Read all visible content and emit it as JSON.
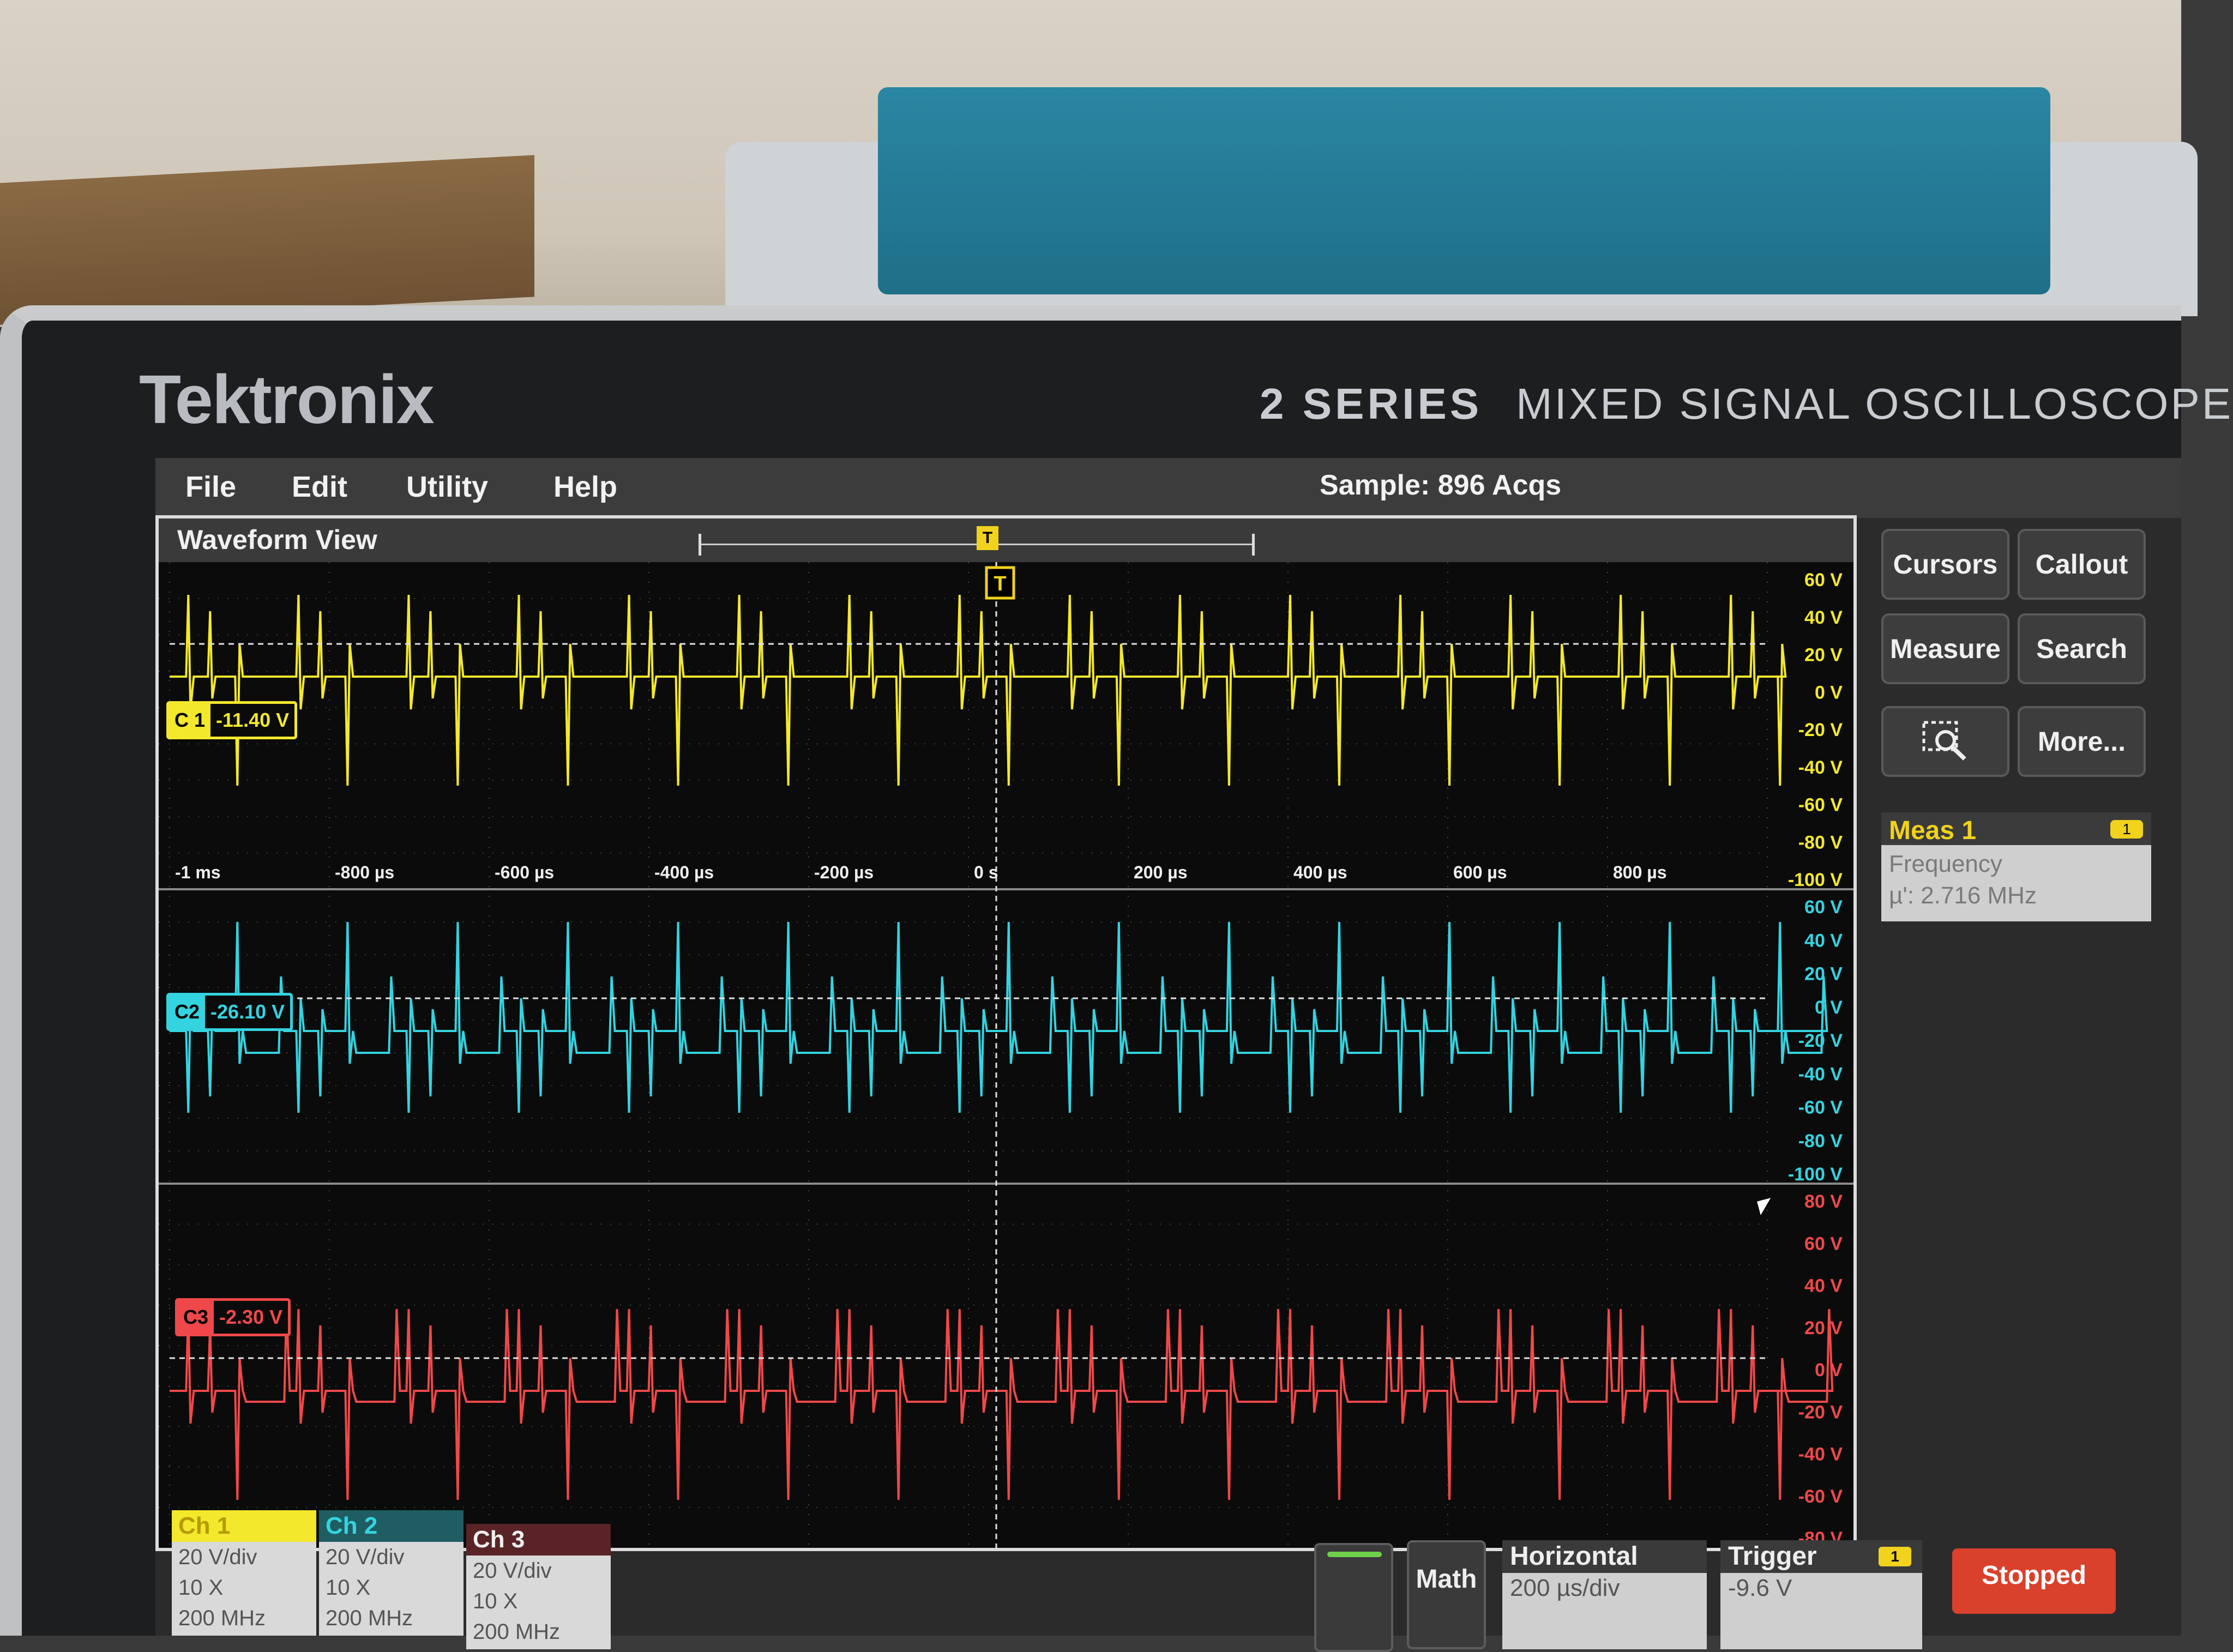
{
  "device": {
    "brand": "Tektronix",
    "series": "2 SERIES",
    "model": "MIXED SIGNAL OSCILLOSCOPE"
  },
  "menubar": {
    "items": [
      "File",
      "Edit",
      "Utility",
      "Help"
    ],
    "acq_status": "Sample: 896 Acqs"
  },
  "waveform_view": {
    "title": "Waveform View",
    "trigger_marker": "T",
    "time_ticks": [
      "-1 ms",
      "-800 µs",
      "-600 µs",
      "-400 µs",
      "-200 µs",
      "0 s",
      "200 µs",
      "400 µs",
      "600 µs",
      "800 µs"
    ],
    "channels": [
      {
        "id": "C1",
        "label": "C 1",
        "offset": "-11.40 V",
        "color": "#f3e82c",
        "vticks": [
          "60 V",
          "40 V",
          "20 V",
          "0 V",
          "-20 V",
          "-40 V",
          "-60 V",
          "-80 V",
          "-100 V"
        ]
      },
      {
        "id": "C2",
        "label": "C2",
        "offset": "-26.10 V",
        "color": "#34d3e0",
        "vticks": [
          "60 V",
          "40 V",
          "20 V",
          "0 V",
          "-20 V",
          "-40 V",
          "-60 V",
          "-80 V",
          "-100 V"
        ]
      },
      {
        "id": "C3",
        "label": "C3",
        "offset": "-2.30 V",
        "color": "#f0484a",
        "vticks": [
          "80 V",
          "60 V",
          "40 V",
          "20 V",
          "0 V",
          "-20 V",
          "-40 V",
          "-60 V",
          "-80 V"
        ]
      }
    ]
  },
  "side_panel": {
    "buttons": [
      "Cursors",
      "Callout",
      "Measure",
      "Search",
      "More..."
    ],
    "zoom_icon": "zoom-icon",
    "measurement": {
      "title": "Meas 1",
      "badge": "1",
      "name": "Frequency",
      "value": "µ': 2.716 MHz"
    }
  },
  "bottom_bar": {
    "channels": [
      {
        "name": "Ch 1",
        "scale": "20 V/div",
        "probe": "10 X",
        "bw": "200 MHz",
        "color": "#f3e82c"
      },
      {
        "name": "Ch 2",
        "scale": "20 V/div",
        "probe": "10 X",
        "bw": "200 MHz",
        "color": "#34d3e0"
      },
      {
        "name": "Ch 3",
        "scale": "20 V/div",
        "probe": "10 X",
        "bw": "200 MHz",
        "color": "#f0484a"
      }
    ],
    "math_label": "Math",
    "horizontal": {
      "title": "Horizontal",
      "scale": "200 µs/div"
    },
    "trigger": {
      "title": "Trigger",
      "badge": "1",
      "level": "-9.6 V"
    },
    "run_state": "Stopped"
  }
}
